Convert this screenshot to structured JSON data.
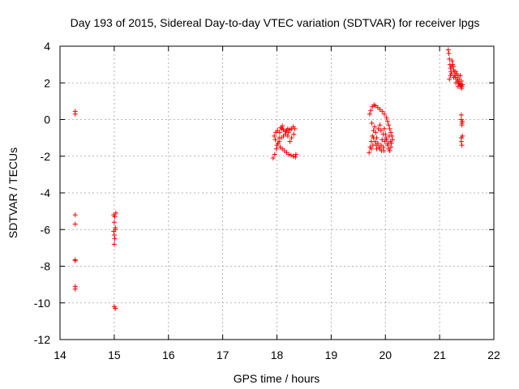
{
  "chart_data": {
    "type": "scatter",
    "title": "Day 193 of 2015, Sidereal Day-to-day VTEC variation (SDTVAR) for receiver lpgs",
    "xlabel": "GPS time / hours",
    "ylabel": "SDTVAR / TECUs",
    "xlim": [
      14,
      22
    ],
    "ylim": [
      -12,
      4
    ],
    "xticks": [
      14,
      15,
      16,
      17,
      18,
      19,
      20,
      21,
      22
    ],
    "yticks": [
      -12,
      -10,
      -8,
      -6,
      -4,
      -2,
      0,
      2,
      4
    ],
    "grid": true,
    "marker": "+",
    "color": "#ff0000",
    "series": [
      {
        "name": "SDTVAR",
        "points": [
          [
            14.28,
            0.45
          ],
          [
            14.28,
            0.3
          ],
          [
            14.28,
            -5.2
          ],
          [
            14.28,
            -5.7
          ],
          [
            14.28,
            -7.65
          ],
          [
            14.28,
            -7.7
          ],
          [
            14.28,
            -9.1
          ],
          [
            14.28,
            -9.25
          ],
          [
            14.99,
            -5.2
          ],
          [
            15.01,
            -5.3
          ],
          [
            15.0,
            -5.6
          ],
          [
            15.02,
            -5.9
          ],
          [
            14.99,
            -6.1
          ],
          [
            15.0,
            -6.3
          ],
          [
            15.01,
            -6.5
          ],
          [
            15.0,
            -6.8
          ],
          [
            15.03,
            -5.1
          ],
          [
            15.02,
            -6.0
          ],
          [
            15.0,
            -10.2
          ],
          [
            15.02,
            -10.3
          ],
          [
            17.93,
            -2.1
          ],
          [
            17.96,
            -1.9
          ],
          [
            17.99,
            -1.6
          ],
          [
            18.02,
            -1.3
          ],
          [
            18.04,
            -1.0
          ],
          [
            18.05,
            -0.7
          ],
          [
            18.07,
            -0.45
          ],
          [
            18.1,
            -0.35
          ],
          [
            18.12,
            -0.55
          ],
          [
            18.15,
            -0.65
          ],
          [
            18.18,
            -0.6
          ],
          [
            18.21,
            -0.7
          ],
          [
            18.24,
            -0.55
          ],
          [
            18.27,
            -0.5
          ],
          [
            18.3,
            -0.4
          ],
          [
            18.33,
            -0.5
          ],
          [
            18.31,
            -0.8
          ],
          [
            18.27,
            -1.0
          ],
          [
            18.24,
            -1.2
          ],
          [
            18.2,
            -0.9
          ],
          [
            18.16,
            -0.8
          ],
          [
            18.12,
            -0.9
          ],
          [
            18.08,
            -1.0
          ],
          [
            18.04,
            -1.2
          ],
          [
            18.0,
            -1.4
          ],
          [
            17.97,
            -1.1
          ],
          [
            17.95,
            -0.9
          ],
          [
            17.98,
            -0.7
          ],
          [
            18.01,
            -0.6
          ],
          [
            18.06,
            -1.5
          ],
          [
            18.1,
            -1.6
          ],
          [
            18.14,
            -1.7
          ],
          [
            18.18,
            -1.8
          ],
          [
            18.22,
            -1.9
          ],
          [
            18.26,
            -1.95
          ],
          [
            18.3,
            -2.0
          ],
          [
            18.34,
            -2.05
          ],
          [
            18.35,
            -1.9
          ],
          [
            18.09,
            -0.5
          ],
          [
            18.2,
            -0.5
          ],
          [
            19.7,
            -1.8
          ],
          [
            19.72,
            -1.5
          ],
          [
            19.74,
            -1.2
          ],
          [
            19.76,
            -0.9
          ],
          [
            19.78,
            -0.6
          ],
          [
            19.8,
            -0.4
          ],
          [
            19.82,
            -0.7
          ],
          [
            19.84,
            -1.0
          ],
          [
            19.86,
            -1.3
          ],
          [
            19.88,
            -1.5
          ],
          [
            19.9,
            -1.6
          ],
          [
            19.92,
            -1.4
          ],
          [
            19.94,
            -1.1
          ],
          [
            19.96,
            -0.8
          ],
          [
            19.98,
            -0.5
          ],
          [
            20.0,
            -0.8
          ],
          [
            20.02,
            -1.1
          ],
          [
            20.04,
            -1.4
          ],
          [
            20.06,
            -1.6
          ],
          [
            20.08,
            -1.7
          ],
          [
            20.1,
            -1.5
          ],
          [
            19.71,
            0.3
          ],
          [
            19.73,
            0.5
          ],
          [
            19.76,
            0.7
          ],
          [
            19.79,
            0.8
          ],
          [
            19.82,
            0.75
          ],
          [
            19.86,
            0.65
          ],
          [
            19.9,
            0.55
          ],
          [
            19.94,
            0.45
          ],
          [
            19.98,
            0.3
          ],
          [
            20.02,
            0.1
          ],
          [
            20.04,
            -0.1
          ],
          [
            20.06,
            -0.3
          ],
          [
            20.08,
            -0.5
          ],
          [
            20.1,
            -0.7
          ],
          [
            20.12,
            -0.9
          ],
          [
            20.13,
            -1.1
          ],
          [
            19.75,
            -0.2
          ],
          [
            19.78,
            -1.0
          ],
          [
            19.81,
            -1.2
          ],
          [
            19.84,
            -1.6
          ],
          [
            19.87,
            -0.5
          ],
          [
            19.9,
            -0.3
          ],
          [
            19.93,
            -1.7
          ],
          [
            19.96,
            -1.5
          ],
          [
            19.99,
            -1.2
          ],
          [
            20.01,
            -1.0
          ],
          [
            20.05,
            -1.3
          ],
          [
            20.09,
            -1.2
          ],
          [
            19.74,
            -1.6
          ],
          [
            19.77,
            -1.4
          ],
          [
            19.83,
            -1.4
          ],
          [
            19.92,
            -0.6
          ],
          [
            19.97,
            -1.7
          ],
          [
            20.07,
            -0.9
          ],
          [
            20.11,
            -1.3
          ],
          [
            21.16,
            3.8
          ],
          [
            21.17,
            3.6
          ],
          [
            21.18,
            3.3
          ],
          [
            21.19,
            3.0
          ],
          [
            21.2,
            2.8
          ],
          [
            21.21,
            2.6
          ],
          [
            21.22,
            2.5
          ],
          [
            21.23,
            3.2
          ],
          [
            21.24,
            3.0
          ],
          [
            21.25,
            2.9
          ],
          [
            21.26,
            2.7
          ],
          [
            21.27,
            2.6
          ],
          [
            21.28,
            2.4
          ],
          [
            21.29,
            2.3
          ],
          [
            21.3,
            2.6
          ],
          [
            21.31,
            2.5
          ],
          [
            21.32,
            2.2
          ],
          [
            21.33,
            2.1
          ],
          [
            21.34,
            2.4
          ],
          [
            21.35,
            2.0
          ],
          [
            21.36,
            2.2
          ],
          [
            21.37,
            1.95
          ],
          [
            21.38,
            1.9
          ],
          [
            21.39,
            1.85
          ],
          [
            21.4,
            2.1
          ],
          [
            21.41,
            1.8
          ],
          [
            21.42,
            1.9
          ],
          [
            21.18,
            2.2
          ],
          [
            21.2,
            2.4
          ],
          [
            21.22,
            2.9
          ],
          [
            21.26,
            2.3
          ],
          [
            21.3,
            2.0
          ],
          [
            21.34,
            1.8
          ],
          [
            21.38,
            2.4
          ],
          [
            21.4,
            1.7
          ],
          [
            21.4,
            0.25
          ],
          [
            21.4,
            0.0
          ],
          [
            21.41,
            -0.2
          ],
          [
            21.42,
            -0.1
          ],
          [
            21.41,
            -0.3
          ],
          [
            21.4,
            -1.0
          ],
          [
            21.42,
            -0.9
          ],
          [
            21.4,
            -1.2
          ],
          [
            21.41,
            -1.4
          ]
        ]
      }
    ]
  }
}
